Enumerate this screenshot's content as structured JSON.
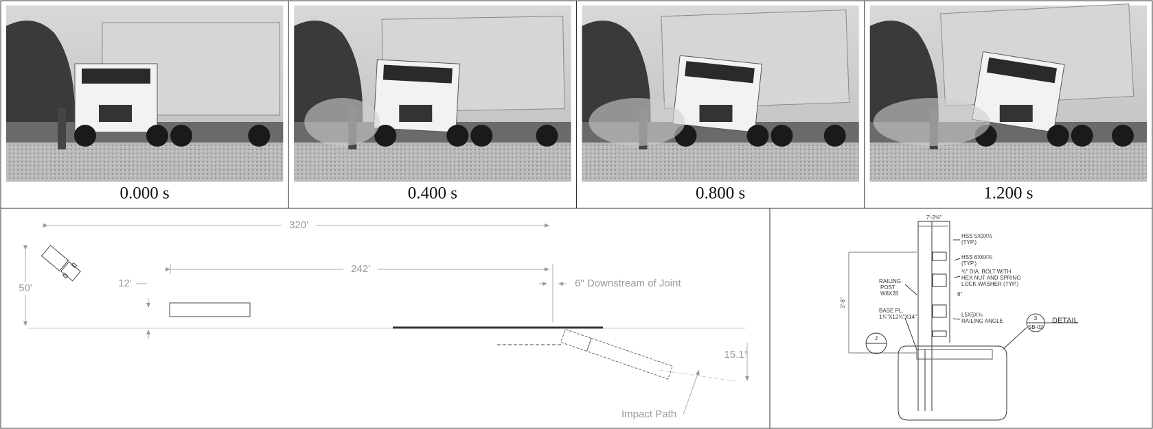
{
  "frames": [
    {
      "time": "0.000 s"
    },
    {
      "time": "0.400 s"
    },
    {
      "time": "0.800 s"
    },
    {
      "time": "1.200 s"
    }
  ],
  "site_plan": {
    "overall_length": "320'",
    "barrier_length": "242'",
    "approach_offset": "50'",
    "lateral_offset": "12'",
    "impact_point": "6\" Downstream of Joint",
    "impact_angle": "15.1°",
    "impact_path": "Impact Path"
  },
  "detail": {
    "width_dim": "7'-2⅝\"",
    "rail_top": "HSS 5X3X½",
    "rail_top_note": "(TYP.)",
    "rail_mid": "HSS 6X6X⅜",
    "rail_mid_note": "(TYP.)",
    "bolt_1": "¾\" DIA. BOLT WITH",
    "bolt_2": "HEX NUT AND SPRING",
    "bolt_3": "LOCK WASHER (TYP.)",
    "post_1": "RAILING",
    "post_2": "POST",
    "post_3": "W8X28",
    "height_dim": "3'-6\"",
    "spacing_dim": "6\"",
    "base_1": "BASE PL.",
    "base_2": "1¾\"X12¾\"X14\"",
    "angle_1": "L5X5X⅝",
    "angle_2": "RAILING ANGLE",
    "detail_num": "3",
    "detail_sheet": "SB-02",
    "detail_label": "DETAIL",
    "section_mark": "J"
  }
}
